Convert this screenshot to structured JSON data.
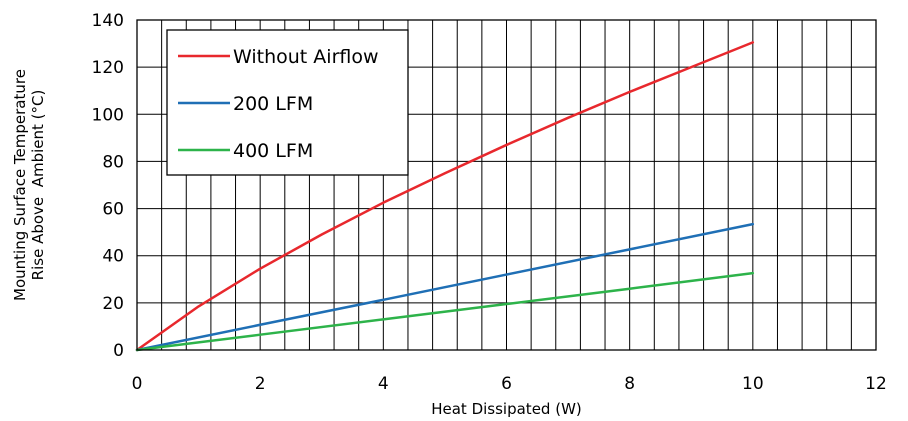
{
  "chart_data": {
    "type": "line",
    "title": "",
    "xlabel": "Heat Dissipated (W)",
    "ylabel_lines": [
      "Mounting Surface Temperature",
      "Rise Above  Ambient (°C)"
    ],
    "xlim": [
      0,
      12
    ],
    "ylim": [
      0,
      140
    ],
    "xticks": [
      "0",
      "2",
      "4",
      "6",
      "8",
      "10",
      "12"
    ],
    "yticks": [
      "0",
      "20",
      "40",
      "60",
      "80",
      "100",
      "120",
      "140"
    ],
    "x_minor_step": 0.4,
    "grid": true,
    "legend_position": "top-left",
    "series": [
      {
        "name": "Without Airflow",
        "color": "#e8282d",
        "x": [
          0,
          1,
          2,
          3,
          4,
          5,
          6,
          7,
          8,
          9,
          10
        ],
        "y": [
          0,
          18.5,
          34.5,
          49,
          62.5,
          75,
          87,
          98.5,
          109.5,
          120,
          130.5
        ]
      },
      {
        "name": "200 LFM",
        "color": "#1f6fb5",
        "x": [
          0,
          2,
          4,
          6,
          8,
          10
        ],
        "y": [
          0,
          10.7,
          21.3,
          32,
          42.7,
          53.4
        ]
      },
      {
        "name": "400 LFM",
        "color": "#2db34a",
        "x": [
          0,
          2,
          4,
          6,
          8,
          10
        ],
        "y": [
          0,
          6.5,
          13,
          19.5,
          26,
          32.6
        ]
      }
    ]
  }
}
